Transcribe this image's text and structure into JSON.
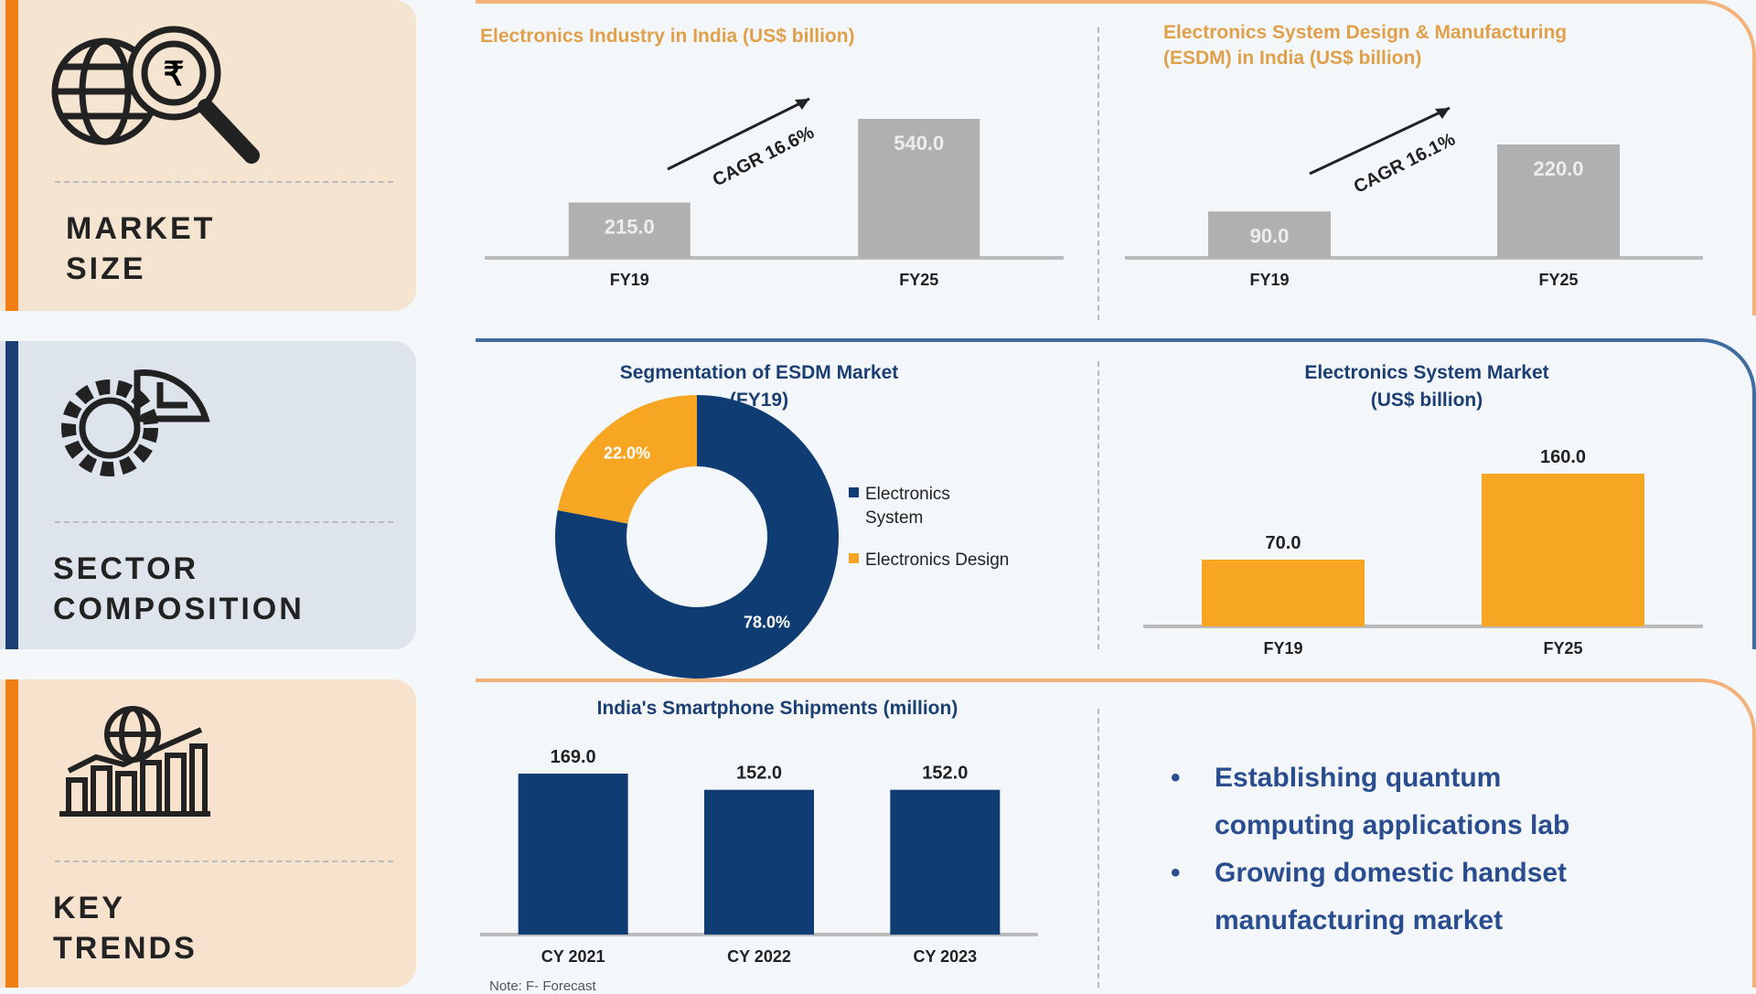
{
  "sections": [
    {
      "label_line1": "MARKET",
      "label_line2": "SIZE",
      "icon": "globe-magnifier-rupee-icon",
      "color": "#f07f16",
      "bg": "#f5e4cf"
    },
    {
      "label_line1": "SECTOR",
      "label_line2": "COMPOSITION",
      "icon": "gear-pie-chart-icon",
      "color": "#1b3f73",
      "bg": "#dde4ec"
    },
    {
      "label_line1": "KEY",
      "label_line2": "TRENDS",
      "icon": "globe-bar-chart-growth-icon",
      "color": "#f07f16",
      "bg": "#f7e2cd"
    }
  ],
  "chart_data": [
    {
      "type": "bar",
      "title": "Electronics Industry in India (US$ billion)",
      "categories": [
        "FY19",
        "FY25"
      ],
      "values": [
        215.0,
        540.0
      ],
      "value_labels": [
        "215.0",
        "540.0"
      ],
      "annotation": "CAGR 16.6%",
      "color": "#b0b0b0"
    },
    {
      "type": "bar",
      "title": "Electronics System Design & Manufacturing (ESDM) in India (US$ billion)",
      "title_line1": "Electronics System Design & Manufacturing",
      "title_line2": "(ESDM) in India (US$ billion)",
      "categories": [
        "FY19",
        "FY25"
      ],
      "values": [
        90.0,
        220.0
      ],
      "value_labels": [
        "90.0",
        "220.0"
      ],
      "annotation": "CAGR 16.1%",
      "color": "#b0b0b0"
    },
    {
      "type": "pie",
      "title": "Segmentation of ESDM Market (FY19)",
      "title_line1": "Segmentation of ESDM Market",
      "title_line2": "(FY19)",
      "series": [
        {
          "name": "Electronics System",
          "value": 78.0,
          "label": "78.0%",
          "color": "#0f3d73"
        },
        {
          "name": "Electronics Design",
          "value": 22.0,
          "label": "22.0%",
          "color": "#f6a623"
        }
      ],
      "legend": "right",
      "legend_line1": "Electronics",
      "legend_line2": "System"
    },
    {
      "type": "bar",
      "title": "Electronics System Market (US$ billion)",
      "title_line1": "Electronics System Market",
      "title_line2": "(US$ billion)",
      "categories": [
        "FY19",
        "FY25"
      ],
      "values": [
        70.0,
        160.0
      ],
      "value_labels": [
        "70.0",
        "160.0"
      ],
      "color": "#f6a623"
    },
    {
      "type": "bar",
      "title": "India's Smartphone Shipments (million)",
      "categories": [
        "CY 2021",
        "CY 2022",
        "CY 2023"
      ],
      "values": [
        169.0,
        152.0,
        152.0
      ],
      "value_labels": [
        "169.0",
        "152.0",
        "152.0"
      ],
      "color": "#0f3d73",
      "note": "Note: F- Forecast"
    }
  ],
  "trends": [
    "Establishing quantum computing applications lab",
    "Growing domestic handset manufacturing market"
  ],
  "trend_lines": [
    [
      "Establishing quantum",
      "computing applications lab"
    ],
    [
      "Growing domestic handset",
      "manufacturing market"
    ]
  ]
}
